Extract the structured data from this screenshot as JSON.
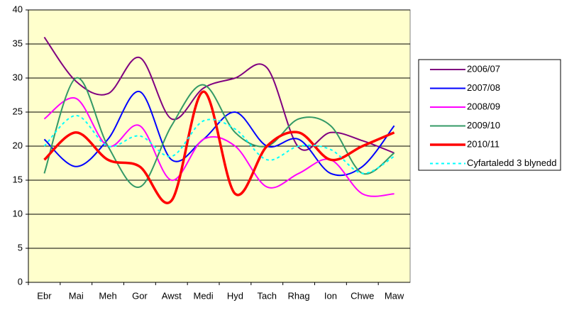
{
  "chart_data": {
    "type": "line",
    "categories": [
      "Ebr",
      "Mai",
      "Meh",
      "Gor",
      "Awst",
      "Medi",
      "Hyd",
      "Tach",
      "Rhag",
      "Ion",
      "Chwe",
      "Maw"
    ],
    "series": [
      {
        "name": "2006/07",
        "color": "#800080",
        "values": [
          36,
          29.5,
          27.7,
          33,
          24,
          28.5,
          30,
          31.5,
          19.8,
          22,
          20.8,
          19
        ]
      },
      {
        "name": "2007/08",
        "color": "#0000ff",
        "values": [
          21,
          17,
          21,
          28,
          18,
          21,
          25,
          20,
          21,
          16,
          17,
          23
        ]
      },
      {
        "name": "2008/09",
        "color": "#ff00ff",
        "values": [
          24,
          27,
          20,
          23,
          15,
          21,
          20,
          14,
          16,
          18,
          13,
          13
        ]
      },
      {
        "name": "2009/10",
        "color": "#339966",
        "values": [
          16,
          30,
          20,
          14,
          23,
          29,
          22,
          20,
          24,
          23,
          16,
          19
        ]
      },
      {
        "name": "2010/11",
        "color": "#ff0000",
        "values": [
          18,
          22,
          18,
          17,
          12,
          28,
          13,
          20,
          22,
          18,
          20,
          22
        ]
      },
      {
        "name": "Cyfartaledd 3 blynedd",
        "color": "#00ffff",
        "dashed": true,
        "values": [
          20,
          24.5,
          20,
          21.5,
          18.5,
          23.7,
          22.5,
          18,
          20,
          19.5,
          16,
          18.5
        ]
      }
    ],
    "ylim": [
      0,
      40
    ],
    "yticks": [
      0,
      5,
      10,
      15,
      20,
      25,
      30,
      35,
      40
    ],
    "grid": true,
    "smooth": true,
    "background": "#ffffcc",
    "legend": "right"
  }
}
